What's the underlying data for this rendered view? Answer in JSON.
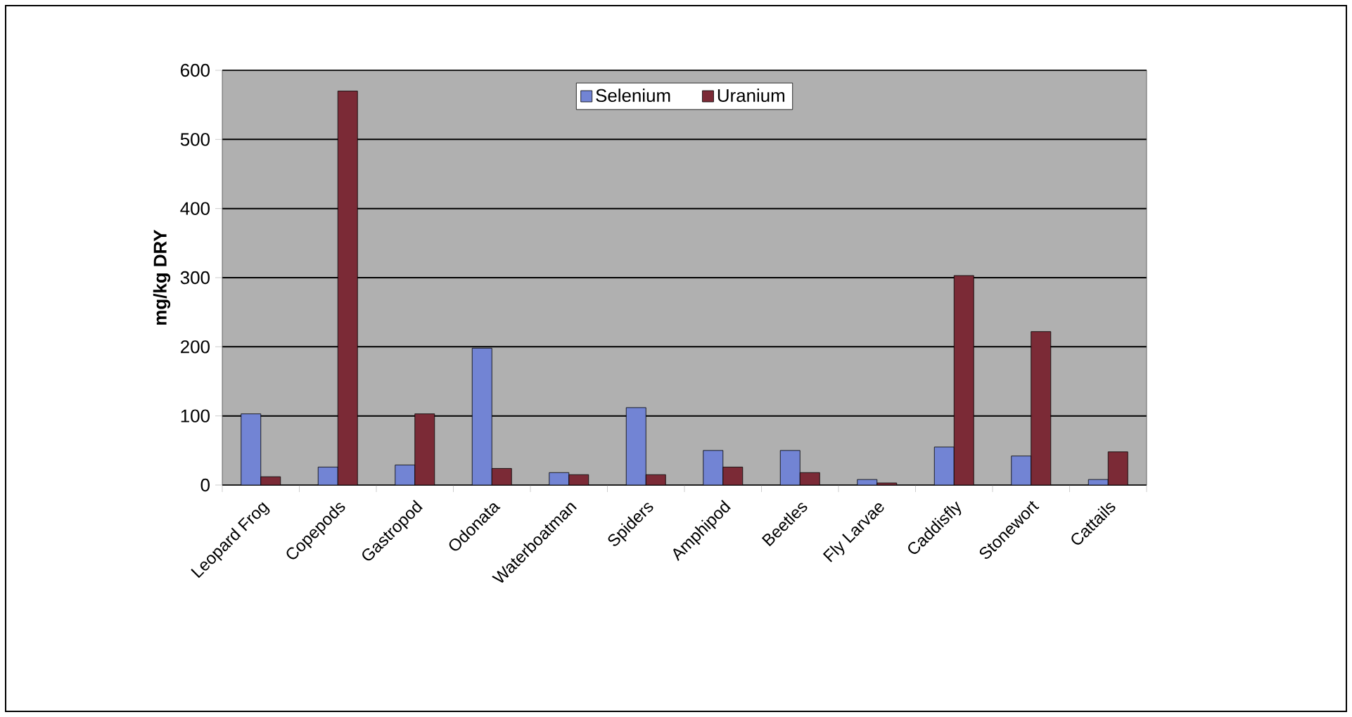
{
  "chart_data": {
    "type": "bar",
    "ylabel": "mg/kg DRY",
    "categories": [
      "Leopard Frog",
      "Copepods",
      "Gastropod",
      "Odonata",
      "Waterboatman",
      "Spiders",
      "Amphipod",
      "Beetles",
      "Fly Larvae",
      "Caddisfly",
      "Stonewort",
      "Cattails"
    ],
    "series": [
      {
        "name": "Selenium",
        "color": "#7284d4",
        "values": [
          103,
          26,
          29,
          198,
          18,
          112,
          50,
          50,
          8,
          55,
          42,
          8
        ]
      },
      {
        "name": "Uranium",
        "color": "#7b2a36",
        "values": [
          12,
          570,
          103,
          24,
          15,
          15,
          26,
          18,
          3,
          303,
          222,
          48
        ]
      }
    ],
    "ylim": [
      0,
      600
    ],
    "yticks": [
      0,
      100,
      200,
      300,
      400,
      500,
      600
    ],
    "grid": "y",
    "legend": "top"
  }
}
